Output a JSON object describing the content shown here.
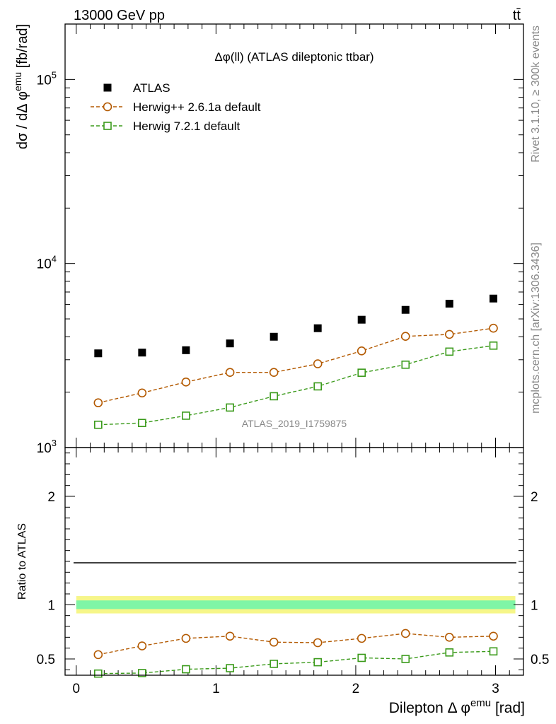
{
  "header": {
    "energy_label": "13000 GeV pp",
    "process_label": "tt̄"
  },
  "side_labels": {
    "rivet": "Rivet 3.1.10, ≥ 300k events",
    "mcplots": "mcplots.cern.ch [arXiv:1306.3436]"
  },
  "chart_data": [
    {
      "type": "scatter",
      "panel": "main",
      "title": "Δφ(ll) (ATLAS dileptonic ttbar)",
      "analysis_label": "ATLAS_2019_I1759875",
      "ylabel": "dσ / dΔ φ^emu [fb/rad]",
      "ylabel_parts": {
        "prefix": "dσ / dΔ φ",
        "sup": "emu",
        "suffix": " [fb/rad]"
      },
      "yscale": "log",
      "ylim": [
        1000,
        200000
      ],
      "xlim": [
        -0.08,
        3.2
      ],
      "y_ticks": [
        {
          "value": 1000,
          "base": "10",
          "exp": "3"
        },
        {
          "value": 10000,
          "base": "10",
          "exp": "4"
        },
        {
          "value": 100000,
          "base": "10",
          "exp": "5"
        }
      ],
      "legend_position": "top-left",
      "x": [
        0.157,
        0.471,
        0.785,
        1.1,
        1.414,
        1.728,
        2.042,
        2.356,
        2.67,
        2.985
      ],
      "series": [
        {
          "name": "ATLAS",
          "marker": "filled-square",
          "color": "#000000",
          "values": [
            3250,
            3280,
            3380,
            3680,
            4000,
            4450,
            4950,
            5600,
            6050,
            6450
          ]
        },
        {
          "name": "Herwig++ 2.6.1a default",
          "marker": "open-circle",
          "color": "#b35900",
          "values": [
            1750,
            1980,
            2270,
            2560,
            2560,
            2850,
            3350,
            4020,
            4120,
            4450
          ]
        },
        {
          "name": "Herwig 7.2.1 default",
          "marker": "open-square",
          "color": "#3a9a1a",
          "values": [
            1330,
            1360,
            1490,
            1650,
            1900,
            2150,
            2550,
            2820,
            3320,
            3580
          ]
        }
      ]
    },
    {
      "type": "scatter",
      "panel": "ratio",
      "ylabel": "Ratio to ATLAS",
      "xlabel": "Dilepton Δ φ^emu [rad]",
      "xlabel_parts": {
        "prefix": "Dilepton Δ φ",
        "sup": "emu",
        "suffix": " [rad]"
      },
      "ylim": [
        0.35,
        2.45
      ],
      "xlim": [
        -0.08,
        3.2
      ],
      "x_ticks": [
        0,
        1,
        2,
        3
      ],
      "y_ticks": [
        0.5,
        1,
        2
      ],
      "y_tick_labels": [
        "0.5",
        "1",
        "2"
      ],
      "x_tick_labels": [
        "0",
        "1",
        "2",
        "3"
      ],
      "uncertainty_band": {
        "inner": 0.04,
        "outer": 0.08,
        "inner_color": "#7ff5a6",
        "outer_color": "#f6f689"
      },
      "x": [
        0.157,
        0.471,
        0.785,
        1.1,
        1.414,
        1.728,
        2.042,
        2.356,
        2.67,
        2.985
      ],
      "series": [
        {
          "name": "Herwig++ 2.6.1a default",
          "marker": "open-circle",
          "color": "#b35900",
          "values": [
            0.54,
            0.62,
            0.69,
            0.71,
            0.655,
            0.65,
            0.69,
            0.735,
            0.7,
            0.71
          ],
          "errors": [
            0.035,
            0.03,
            0.025,
            0.025,
            0.025,
            0.025,
            0.02,
            0.02,
            0.02,
            0.02
          ]
        },
        {
          "name": "Herwig 7.2.1 default",
          "marker": "open-square",
          "color": "#3a9a1a",
          "values": [
            0.365,
            0.37,
            0.405,
            0.415,
            0.455,
            0.47,
            0.51,
            0.5,
            0.56,
            0.57
          ],
          "errors": [
            0.008,
            0.008,
            0.008,
            0.008,
            0.008,
            0.008,
            0.008,
            0.008,
            0.008,
            0.008
          ]
        }
      ]
    }
  ]
}
